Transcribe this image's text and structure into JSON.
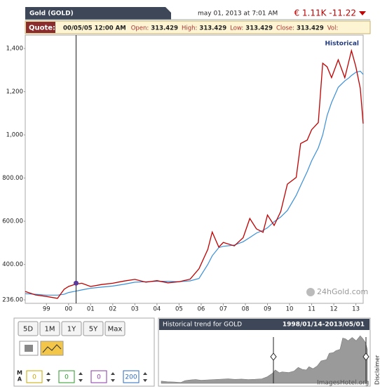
{
  "header": {
    "tab": "Gold (GOLD)",
    "datetime": "may 01, 2013 at 7:01 AM",
    "price": "€ 1.11K -11.22"
  },
  "quote": {
    "label": "Quote:",
    "date": "00/05/05 12:00 AM",
    "fields": [
      {
        "name": "Open:",
        "value": 313.429
      },
      {
        "name": "High:",
        "value": 313.429
      },
      {
        "name": "Low:",
        "value": 313.429
      },
      {
        "name": "Close:",
        "value": 313.429
      },
      {
        "name": "Vol:"
      }
    ]
  },
  "chart_data": {
    "type": "line",
    "label": "Historical",
    "watermark": "24hGold.com",
    "x": [
      1998.04,
      1998.5,
      1999.0,
      1999.5,
      1999.8,
      2000.0,
      2000.3,
      2000.6,
      2001.0,
      2001.5,
      2002.0,
      2002.5,
      2003.0,
      2003.5,
      2004.0,
      2004.5,
      2005.0,
      2005.5,
      2005.9,
      2006.3,
      2006.5,
      2006.8,
      2007.0,
      2007.5,
      2007.9,
      2008.2,
      2008.5,
      2008.8,
      2009.0,
      2009.3,
      2009.6,
      2009.9,
      2010.3,
      2010.5,
      2010.8,
      2011.0,
      2011.3,
      2011.5,
      2011.7,
      2011.9,
      2012.2,
      2012.5,
      2012.7,
      2012.8,
      2013.0,
      2013.2,
      2013.33
    ],
    "series": [
      {
        "name": "Gold",
        "color": "#c00000",
        "values": [
          275,
          259,
          252,
          243,
          285,
          298,
          308,
          313,
          298,
          307,
          313,
          323,
          331,
          318,
          325,
          315,
          320,
          332,
          380,
          470,
          550,
          480,
          502,
          486,
          524,
          613,
          565,
          549,
          629,
          581,
          645,
          772,
          803,
          960,
          976,
          1024,
          1057,
          1332,
          1315,
          1265,
          1348,
          1265,
          1348,
          1390,
          1315,
          1215,
          1052
        ]
      },
      {
        "name": "MA 200",
        "color": "#3a8fd8",
        "values": [
          265,
          262,
          258,
          258,
          262,
          270,
          276,
          282,
          290,
          295,
          300,
          308,
          318,
          320,
          322,
          322,
          320,
          324,
          335,
          400,
          440,
          478,
          484,
          490,
          505,
          525,
          545,
          558,
          570,
          598,
          620,
          650,
          720,
          765,
          830,
          880,
          940,
          1000,
          1090,
          1150,
          1220,
          1250,
          1265,
          1275,
          1290,
          1295,
          1280
        ]
      }
    ],
    "cursor_x": 2000.34,
    "xlim": [
      1998.04,
      2013.33
    ],
    "xticks": [
      {
        "value": 1999,
        "label": "99"
      },
      {
        "value": 2000,
        "label": "00"
      },
      {
        "value": 2001,
        "label": "01"
      },
      {
        "value": 2002,
        "label": "02"
      },
      {
        "value": 2003,
        "label": "03"
      },
      {
        "value": 2004,
        "label": "04"
      },
      {
        "value": 2005,
        "label": "05"
      },
      {
        "value": 2006,
        "label": "06"
      },
      {
        "value": 2007,
        "label": "07"
      },
      {
        "value": 2008,
        "label": "08"
      },
      {
        "value": 2009,
        "label": "09"
      },
      {
        "value": 2010,
        "label": "10"
      },
      {
        "value": 2011,
        "label": "11"
      },
      {
        "value": 2012,
        "label": "12"
      },
      {
        "value": 2013,
        "label": "13"
      }
    ],
    "ylim": [
      220,
      1462
    ],
    "yticks": [
      {
        "value": 236,
        "label": "236.00"
      },
      {
        "value": 400,
        "label": "400.00"
      },
      {
        "value": 600,
        "label": "600.00"
      },
      {
        "value": 800,
        "label": "800.00"
      },
      {
        "value": 1000,
        "label": "1,000"
      },
      {
        "value": 1200,
        "label": "1,200"
      },
      {
        "value": 1400,
        "label": "1,400"
      }
    ],
    "grid": false
  },
  "controls": {
    "buttons": [
      "5D",
      "1M",
      "1Y",
      "5Y",
      "Max"
    ],
    "ma_label": [
      "M",
      "A"
    ],
    "ma_values": [
      0,
      0,
      0,
      200
    ],
    "ma_colors": [
      "#c9a800",
      "#2a9a2a",
      "#8a3aa8",
      "#2a6ac0"
    ]
  },
  "mini": {
    "title": "Historical trend for GOLD",
    "range": "1998/01/14-2013/05/01"
  },
  "disclaimer": "Disclaimer",
  "footer": "ImagesHotel.org"
}
